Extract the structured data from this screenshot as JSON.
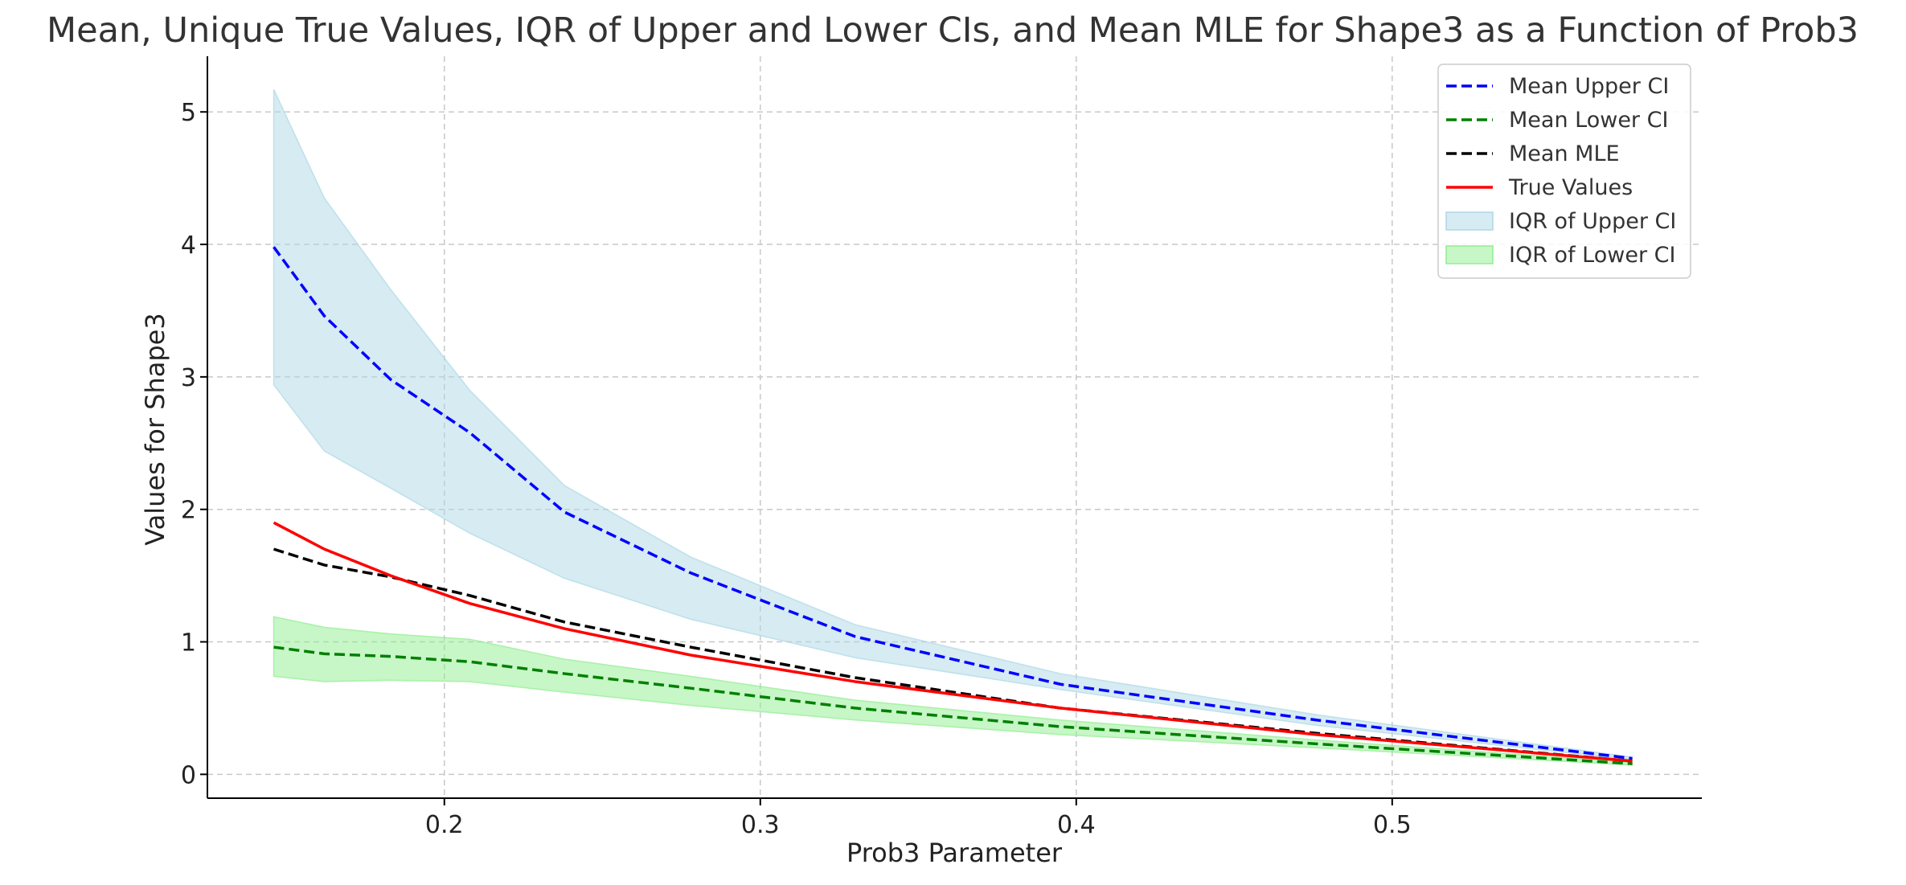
{
  "chart_data": {
    "type": "line",
    "title": "Mean, Unique True Values, IQR of Upper and Lower CIs, and Mean MLE for Shape3 as a Function of Prob3",
    "xlabel": "Prob3 Parameter",
    "ylabel": "Values for Shape3",
    "xlim": [
      0.125,
      0.598
    ],
    "ylim": [
      -0.18,
      5.42
    ],
    "xticks": [
      0.2,
      0.3,
      0.4,
      0.5
    ],
    "xtick_labels": [
      "0.2",
      "0.3",
      "0.4",
      "0.5"
    ],
    "yticks": [
      0,
      1,
      2,
      3,
      4,
      5
    ],
    "ytick_labels": [
      "0",
      "1",
      "2",
      "3",
      "4",
      "5"
    ],
    "grid": true,
    "legend_position": "top-right",
    "x": [
      0.146,
      0.162,
      0.183,
      0.208,
      0.238,
      0.278,
      0.33,
      0.395,
      0.476,
      0.576
    ],
    "series": [
      {
        "name": "Mean Upper CI",
        "style": "dashed",
        "color": "#0000ff",
        "values": [
          3.98,
          3.46,
          2.98,
          2.58,
          1.98,
          1.52,
          1.04,
          0.68,
          0.41,
          0.12
        ]
      },
      {
        "name": "Mean Lower CI",
        "style": "dashed",
        "color": "#008000",
        "values": [
          0.96,
          0.91,
          0.89,
          0.85,
          0.76,
          0.65,
          0.5,
          0.36,
          0.23,
          0.08
        ]
      },
      {
        "name": "Mean MLE",
        "style": "dashed",
        "color": "#000000",
        "values": [
          1.7,
          1.58,
          1.49,
          1.35,
          1.15,
          0.96,
          0.73,
          0.5,
          0.31,
          0.1
        ]
      },
      {
        "name": "True Values",
        "style": "solid",
        "color": "#ff0000",
        "values": [
          1.9,
          1.7,
          1.5,
          1.29,
          1.1,
          0.9,
          0.7,
          0.5,
          0.3,
          0.1
        ]
      }
    ],
    "bands": [
      {
        "name": "IQR of Upper CI",
        "color": "#add8e6",
        "opacity": 0.5,
        "lower": [
          2.94,
          2.44,
          2.16,
          1.82,
          1.48,
          1.17,
          0.88,
          0.64,
          0.37,
          0.11
        ],
        "upper": [
          5.17,
          4.35,
          3.66,
          2.9,
          2.18,
          1.64,
          1.13,
          0.76,
          0.45,
          0.13
        ]
      },
      {
        "name": "IQR of Lower CI",
        "color": "#90ee90",
        "opacity": 0.5,
        "lower": [
          0.74,
          0.7,
          0.71,
          0.7,
          0.62,
          0.52,
          0.41,
          0.3,
          0.2,
          0.07
        ],
        "upper": [
          1.19,
          1.11,
          1.06,
          1.02,
          0.87,
          0.74,
          0.56,
          0.41,
          0.26,
          0.09
        ]
      }
    ]
  }
}
